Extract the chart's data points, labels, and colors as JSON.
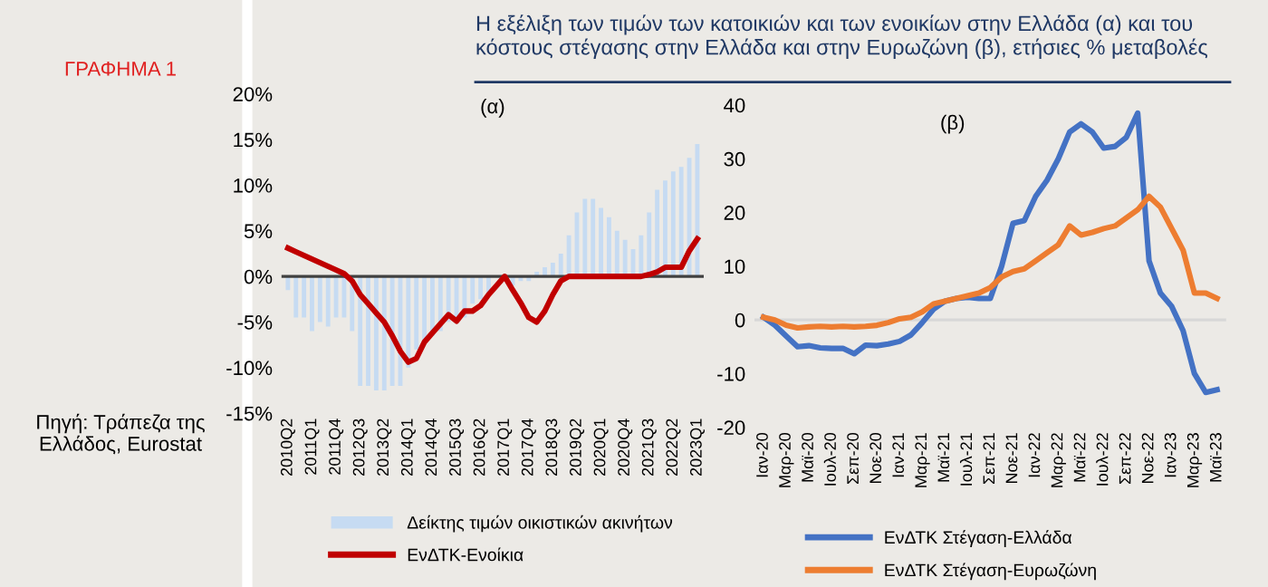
{
  "chart_data": [
    {
      "type": "bar",
      "title": "Η εξέλιξη των τιμών των κατοικιών και των ενοικίων στην Ελλάδα (α) και του κόστους στέγασης στην Ελλάδα και στην Ευρωζώνη (β), ετήσιες % μεταβολές",
      "subtitle": "(α)",
      "annotations": [
        "ΓΡΑΦΗΜΑ 1",
        "Πηγή: Τράπεζα της Ελλάδος, Eurostat"
      ],
      "categories": [
        "2010Q2",
        null,
        null,
        "2011Q1",
        null,
        null,
        "2011Q4",
        null,
        null,
        "2012Q3",
        null,
        null,
        "2013Q2",
        null,
        null,
        "2014Q1",
        null,
        null,
        "2014Q4",
        null,
        null,
        "2015Q3",
        null,
        null,
        "2016Q2",
        null,
        null,
        "2017Q1",
        null,
        null,
        "2017Q4",
        null,
        null,
        "2018Q3",
        null,
        null,
        "2019Q2",
        null,
        null,
        "2020Q1",
        null,
        null,
        "2020Q4",
        null,
        null,
        "2021Q3",
        null,
        null,
        "2022Q2",
        null,
        null,
        "2023Q1"
      ],
      "series": [
        {
          "name": "Δείκτης τιμών οικιστικών ακινήτων",
          "type": "bar",
          "color": "#c6dbf2",
          "values": [
            -1.5,
            -4.5,
            -4.5,
            -6,
            -5,
            -5.5,
            -4.5,
            -4.5,
            -6,
            -12,
            -12,
            -12.5,
            -12.5,
            -12,
            -12,
            -10,
            -8,
            -7,
            -6.5,
            -6,
            -5,
            -5,
            -4.5,
            -3,
            -2.5,
            -2,
            null,
            null,
            -1,
            -0.5,
            -0.5,
            0.5,
            1,
            1.5,
            2.5,
            4.5,
            7,
            8.5,
            8.5,
            7.5,
            6.5,
            5,
            4,
            3,
            4.5,
            7,
            9.5,
            10.5,
            11.5,
            12,
            13,
            14.5
          ]
        },
        {
          "name": "ΕνΔΤΚ-Ενοίκια",
          "type": "line",
          "color": "#c00000",
          "values": [
            3.1,
            2.7,
            2.3,
            1.9,
            1.5,
            1.1,
            0.7,
            0.3,
            -0.5,
            -2.0,
            -3.0,
            -4.0,
            -5.0,
            -6.5,
            -8.2,
            -9.4,
            -9.0,
            -7.2,
            -6.2,
            -5.2,
            -4.2,
            -4.9,
            -3.8,
            -3.8,
            -3.2,
            -2.0,
            -1.0,
            0,
            -1.5,
            -2.9,
            -4.5,
            -5.0,
            -3.8,
            -2.0,
            -0.5,
            0,
            0,
            0,
            0,
            0,
            0,
            0,
            0,
            0,
            0,
            0.2,
            0.5,
            1.0,
            1.0,
            1.0,
            2.8,
            4.1
          ]
        }
      ],
      "ylim": [
        -15,
        20
      ],
      "yticks": [
        {
          "value": -15,
          "label": "-15%"
        },
        {
          "value": -10,
          "label": "-10%"
        },
        {
          "value": -5,
          "label": "-5%"
        },
        {
          "value": 0,
          "label": "0%"
        },
        {
          "value": 5,
          "label": "5%"
        },
        {
          "value": 10,
          "label": "10%"
        },
        {
          "value": 15,
          "label": "15%"
        },
        {
          "value": 20,
          "label": "20%"
        }
      ],
      "ref_lines": [
        {
          "axis": "y",
          "value": 0,
          "color": "#404040"
        }
      ],
      "legend": "bottom",
      "grid": false,
      "line_style": "solid",
      "marker": "none"
    },
    {
      "type": "line",
      "title": "(β)",
      "categories": [
        "Ιαν-20",
        null,
        "Μαρ-20",
        null,
        "Μαϊ-20",
        null,
        "Ιουλ-20",
        null,
        "Σεπ-20",
        null,
        "Νοε-20",
        null,
        "Ιαν-21",
        null,
        "Μαρ-21",
        null,
        "Μαϊ-21",
        null,
        "Ιουλ-21",
        null,
        "Σεπ-21",
        null,
        "Νοε-21",
        null,
        "Ιαν-22",
        null,
        "Μαρ-22",
        null,
        "Μαϊ-22",
        null,
        "Ιουλ-22",
        null,
        "Σεπ-22",
        null,
        "Νοε-22",
        null,
        "Ιαν-23",
        null,
        "Μαρ-23",
        null,
        "Μαϊ-23"
      ],
      "series": [
        {
          "name": "ΕνΔΤΚ Στέγαση-Ελλάδα",
          "color": "#4472c4",
          "values": [
            0.5,
            -1,
            -3,
            -5,
            -4.8,
            -5.2,
            -5.3,
            -5.3,
            -6.3,
            -4.7,
            -4.8,
            -4.5,
            -4,
            -2.8,
            -0.5,
            2,
            3.5,
            4,
            4.2,
            4,
            4,
            10,
            18,
            18.5,
            23,
            26,
            30,
            35,
            36.5,
            35,
            32,
            32.3,
            34,
            38.5,
            11,
            5,
            2.5,
            -2,
            -10,
            -13.5,
            -13
          ]
        },
        {
          "name": "ΕνΔΤΚ Στέγαση-Ευρωζώνη",
          "color": "#ed7d31",
          "values": [
            0.5,
            0,
            -1,
            -1.5,
            -1.3,
            -1.2,
            -1.3,
            -1.2,
            -1.3,
            -1.2,
            -1,
            -0.5,
            0.2,
            0.5,
            1.5,
            3,
            3.5,
            4,
            4.5,
            5,
            6,
            8,
            9,
            9.5,
            11,
            12.5,
            14,
            17.5,
            15.8,
            16.3,
            17,
            17.5,
            19,
            20.5,
            23,
            21,
            17,
            13,
            5,
            5,
            4
          ]
        }
      ],
      "ylim": [
        -20,
        40
      ],
      "yticks": [
        -20,
        -10,
        0,
        10,
        20,
        30,
        40
      ],
      "ref_lines": [
        {
          "axis": "y",
          "value": 0,
          "color": "#d8d8d8"
        }
      ],
      "legend": "bottom",
      "grid": false,
      "line_style": "solid",
      "marker": "none"
    }
  ]
}
